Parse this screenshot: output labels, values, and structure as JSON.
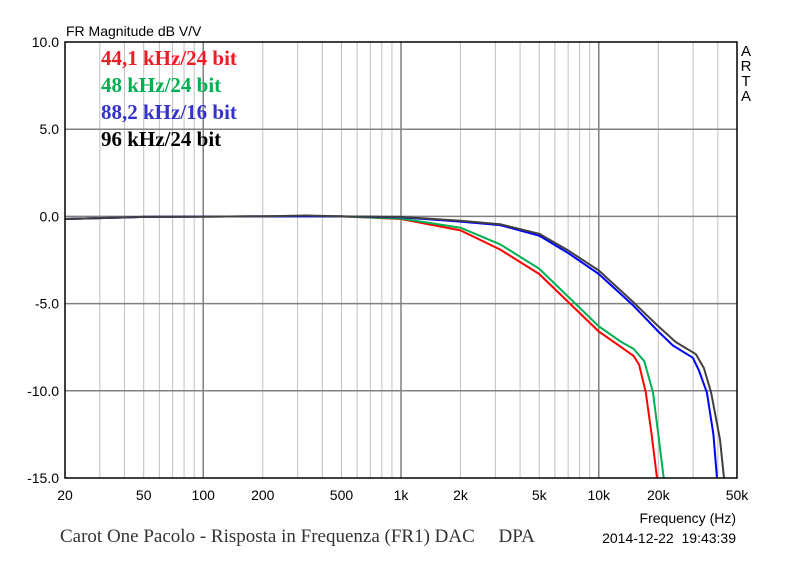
{
  "chart_data": {
    "type": "line",
    "title": "FR Magnitude dB V/V",
    "xlabel": "Frequency (Hz)",
    "ylabel": "FR Magnitude dB V/V",
    "xscale": "log",
    "xlim": [
      20,
      50000
    ],
    "ylim": [
      -15,
      10
    ],
    "grid": true,
    "legend_position": "top-left",
    "x_ticks": [
      {
        "v": 20,
        "label": "20"
      },
      {
        "v": 50,
        "label": "50"
      },
      {
        "v": 100,
        "label": "100"
      },
      {
        "v": 200,
        "label": "200"
      },
      {
        "v": 500,
        "label": "500"
      },
      {
        "v": 1000,
        "label": "1k"
      },
      {
        "v": 2000,
        "label": "2k"
      },
      {
        "v": 5000,
        "label": "5k"
      },
      {
        "v": 10000,
        "label": "10k"
      },
      {
        "v": 20000,
        "label": "20k"
      },
      {
        "v": 50000,
        "label": "50k"
      }
    ],
    "y_ticks": [
      {
        "v": 10,
        "label": "10.0"
      },
      {
        "v": 5,
        "label": "5.0"
      },
      {
        "v": 0,
        "label": "0.0"
      },
      {
        "v": -5,
        "label": "-5.0"
      },
      {
        "v": -10,
        "label": "-10.0"
      },
      {
        "v": -15,
        "label": "-15.0"
      }
    ],
    "series": [
      {
        "name": "44,1 kHz/24 bit",
        "color": "#ff0000",
        "points": [
          [
            20,
            -0.15
          ],
          [
            50,
            -0.03
          ],
          [
            200,
            0
          ],
          [
            500,
            0
          ],
          [
            1000,
            -0.15
          ],
          [
            2000,
            -0.8
          ],
          [
            3170,
            -1.9
          ],
          [
            5000,
            -3.3
          ],
          [
            7000,
            -4.9
          ],
          [
            10000,
            -6.6
          ],
          [
            13000,
            -7.5
          ],
          [
            15000,
            -8.0
          ],
          [
            16000,
            -8.5
          ],
          [
            17300,
            -10.1
          ],
          [
            18500,
            -12.5
          ],
          [
            19700,
            -15
          ]
        ]
      },
      {
        "name": "48 kHz/24 bit",
        "color": "#00b050",
        "points": [
          [
            20,
            -0.15
          ],
          [
            50,
            -0.03
          ],
          [
            200,
            0
          ],
          [
            500,
            0
          ],
          [
            1000,
            -0.12
          ],
          [
            2000,
            -0.65
          ],
          [
            3170,
            -1.6
          ],
          [
            5000,
            -3.0
          ],
          [
            7000,
            -4.6
          ],
          [
            10000,
            -6.3
          ],
          [
            13000,
            -7.2
          ],
          [
            15000,
            -7.6
          ],
          [
            17000,
            -8.3
          ],
          [
            18800,
            -10.1
          ],
          [
            20000,
            -12.5
          ],
          [
            21300,
            -15
          ]
        ]
      },
      {
        "name": "88,2 kHz/16 bit",
        "color": "#0000ff",
        "points": [
          [
            20,
            -0.15
          ],
          [
            50,
            -0.03
          ],
          [
            200,
            0
          ],
          [
            500,
            0
          ],
          [
            1000,
            -0.05
          ],
          [
            2000,
            -0.3
          ],
          [
            3170,
            -0.5
          ],
          [
            5000,
            -1.1
          ],
          [
            7000,
            -2.1
          ],
          [
            10000,
            -3.3
          ],
          [
            14900,
            -5.1
          ],
          [
            20000,
            -6.6
          ],
          [
            23700,
            -7.4
          ],
          [
            29900,
            -8.1
          ],
          [
            32000,
            -8.8
          ],
          [
            35200,
            -10.1
          ],
          [
            38000,
            -12.5
          ],
          [
            39600,
            -15
          ]
        ]
      },
      {
        "name": "96 kHz/24 bit",
        "color": "#404040",
        "points": [
          [
            20,
            -0.15
          ],
          [
            50,
            -0.03
          ],
          [
            200,
            0
          ],
          [
            330,
            0.05
          ],
          [
            500,
            0
          ],
          [
            1000,
            -0.03
          ],
          [
            2000,
            -0.25
          ],
          [
            3170,
            -0.45
          ],
          [
            5000,
            -1.0
          ],
          [
            7000,
            -1.95
          ],
          [
            10000,
            -3.1
          ],
          [
            14900,
            -4.9
          ],
          [
            20000,
            -6.3
          ],
          [
            24500,
            -7.2
          ],
          [
            31000,
            -7.9
          ],
          [
            34000,
            -8.7
          ],
          [
            37000,
            -10.1
          ],
          [
            41000,
            -12.8
          ],
          [
            43000,
            -15
          ]
        ]
      }
    ]
  },
  "legend": [
    "44,1 kHz/24 bit",
    "48 kHz/24 bit",
    "88,2 kHz/16 bit",
    "96 kHz/24 bit"
  ],
  "legend_colors": [
    "#ee1c25",
    "#00b050",
    "#3333cc",
    "#000000"
  ],
  "watermark": [
    "A",
    "R",
    "T",
    "A"
  ],
  "caption": "Carot One Pacolo - Risposta in Frequenza (FR1) DAC     DPA",
  "timestamp": "2014-12-22  19:43:39"
}
